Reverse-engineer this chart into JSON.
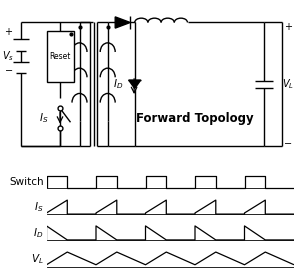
{
  "title": "Forward Topology",
  "bg_color": "#ffffff",
  "line_color": "#000000",
  "period": 1.0,
  "duty": 0.42,
  "num_cycles": 5,
  "fig_width": 3.0,
  "fig_height": 2.72,
  "dpi": 100,
  "circ_xlim": [
    0,
    10
  ],
  "circ_ylim": [
    0,
    6
  ],
  "wave_labels": [
    "Switch",
    "$I_S$",
    "$I_D$",
    "$V_L$"
  ]
}
